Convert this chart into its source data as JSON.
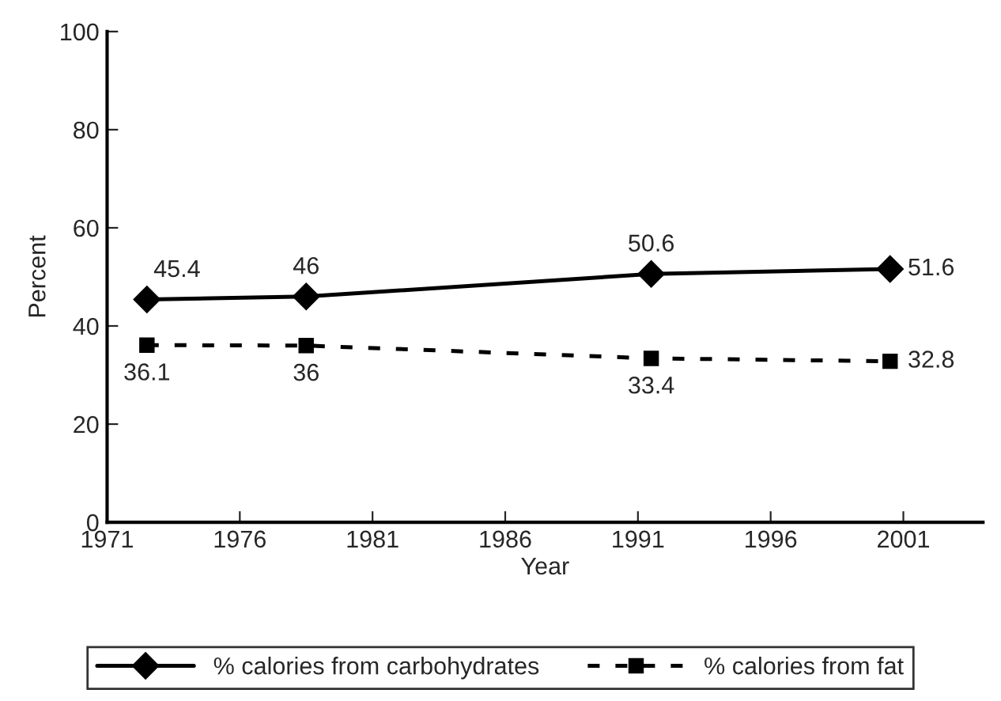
{
  "chart_data": {
    "type": "line",
    "xlabel": "Year",
    "ylabel": "Percent",
    "x": [
      1972.5,
      1978.5,
      1991.5,
      2000.5
    ],
    "series": [
      {
        "name": "% calories from carbohydrates",
        "color": "#000000",
        "values": [
          45.4,
          46,
          50.6,
          51.6
        ],
        "marker": "diamond",
        "line_style": "solid"
      },
      {
        "name": "% calories from fat",
        "color": "#000000",
        "values": [
          36.1,
          36,
          33.4,
          32.8
        ],
        "marker": "square",
        "line_style": "dashed"
      }
    ],
    "xlim": [
      1971,
      2004
    ],
    "xticks": [
      1971,
      1976,
      1981,
      1986,
      1991,
      1996,
      2001
    ],
    "ylim": [
      0,
      100
    ],
    "yticks": [
      0,
      20,
      40,
      60,
      80,
      100
    ],
    "data_labels": true,
    "legend": "bottom",
    "grid": false
  }
}
